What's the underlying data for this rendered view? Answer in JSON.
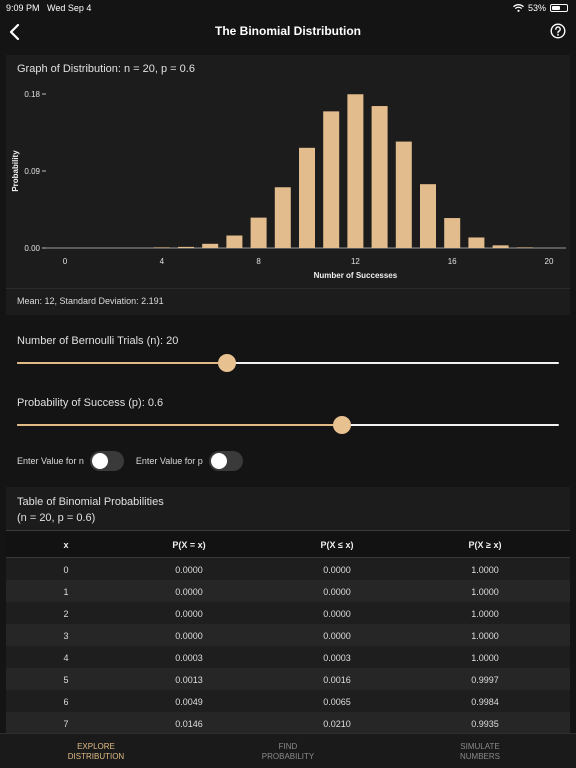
{
  "status": {
    "time": "9:09 PM",
    "date": "Wed Sep 4",
    "battery": "53%",
    "battery_level": 0.53
  },
  "nav": {
    "title": "The Binomial Distribution",
    "back_icon": "chevron-left-icon",
    "help_icon": "question-circle-icon"
  },
  "graph": {
    "title": "Graph of Distribution: n = 20, p = 0.6",
    "mean_text": "Mean: 12, Standard Deviation: 2.191"
  },
  "chart_data": {
    "type": "bar",
    "xlabel": "Number of Successes",
    "ylabel": "Probability",
    "x": [
      0,
      1,
      2,
      3,
      4,
      5,
      6,
      7,
      8,
      9,
      10,
      11,
      12,
      13,
      14,
      15,
      16,
      17,
      18,
      19,
      20
    ],
    "values": [
      0.0,
      0.0,
      0.0,
      0.0,
      0.0003,
      0.0013,
      0.0049,
      0.0146,
      0.0355,
      0.071,
      0.1171,
      0.1597,
      0.1797,
      0.1659,
      0.1244,
      0.0746,
      0.035,
      0.0123,
      0.0031,
      0.0005,
      0.0
    ],
    "xticks": [
      "0",
      "4",
      "8",
      "12",
      "16",
      "20"
    ],
    "yticks": [
      "0.00",
      "0.09",
      "0.18"
    ],
    "ylim": [
      0,
      0.18
    ],
    "bar_color": "#e2bc8c"
  },
  "sliders": {
    "n": {
      "label": "Number of Bernoulli Trials (n): 20",
      "value": 20,
      "min": 1,
      "max": 50
    },
    "p": {
      "label": "Probability of Success (p): 0.6",
      "value": 0.6,
      "min": 0,
      "max": 1
    }
  },
  "toggles": {
    "n_label": "Enter Value for n",
    "p_label": "Enter Value for p"
  },
  "table": {
    "title_line1": "Table of Binomial Probabilities",
    "title_line2": "(n = 20, p = 0.6)",
    "headers": [
      "x",
      "P(X = x)",
      "P(X ≤ x)",
      "P(X ≥ x)"
    ],
    "rows": [
      [
        "0",
        "0.0000",
        "0.0000",
        "1.0000"
      ],
      [
        "1",
        "0.0000",
        "0.0000",
        "1.0000"
      ],
      [
        "2",
        "0.0000",
        "0.0000",
        "1.0000"
      ],
      [
        "3",
        "0.0000",
        "0.0000",
        "1.0000"
      ],
      [
        "4",
        "0.0003",
        "0.0003",
        "1.0000"
      ],
      [
        "5",
        "0.0013",
        "0.0016",
        "0.9997"
      ],
      [
        "6",
        "0.0049",
        "0.0065",
        "0.9984"
      ],
      [
        "7",
        "0.0146",
        "0.0210",
        "0.9935"
      ]
    ]
  },
  "tabs": [
    {
      "line1": "EXPLORE",
      "line2": "DISTRIBUTION",
      "active": true
    },
    {
      "line1": "FIND",
      "line2": "PROBABILITY",
      "active": false
    },
    {
      "line1": "SIMULATE",
      "line2": "NUMBERS",
      "active": false
    }
  ],
  "colors": {
    "accent": "#e0b985",
    "background": "#141414",
    "card": "#1c1c1c"
  }
}
